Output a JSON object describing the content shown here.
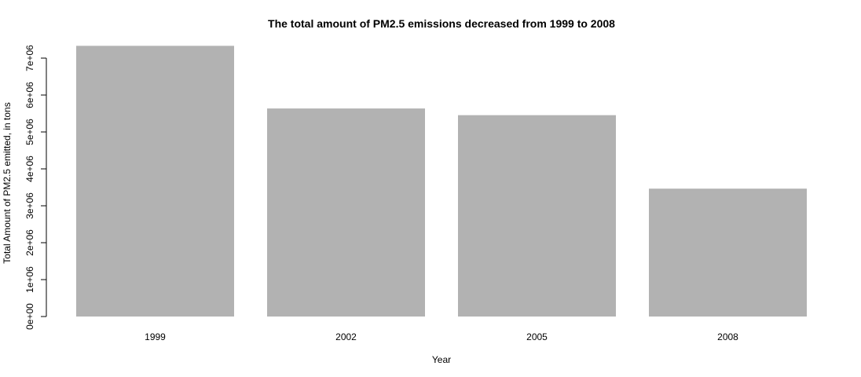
{
  "chart_data": {
    "type": "bar",
    "title": "The total amount of PM2.5 emissions decreased from 1999 to 2008",
    "xlabel": "Year",
    "ylabel": "Total Amount of PM2.5 emitted, in tons",
    "categories": [
      "1999",
      "2002",
      "2005",
      "2008"
    ],
    "values": [
      7332967,
      5635780,
      5454703,
      3464206
    ],
    "ylim": [
      0,
      7500000
    ],
    "yticks": [
      0,
      1000000,
      2000000,
      3000000,
      4000000,
      5000000,
      6000000,
      7000000
    ],
    "ytick_labels": [
      "0e+00",
      "1e+06",
      "2e+06",
      "3e+06",
      "4e+06",
      "5e+06",
      "6e+06",
      "7e+06"
    ],
    "bar_color": "#b2b2b2",
    "grid": false,
    "legend": "none"
  }
}
